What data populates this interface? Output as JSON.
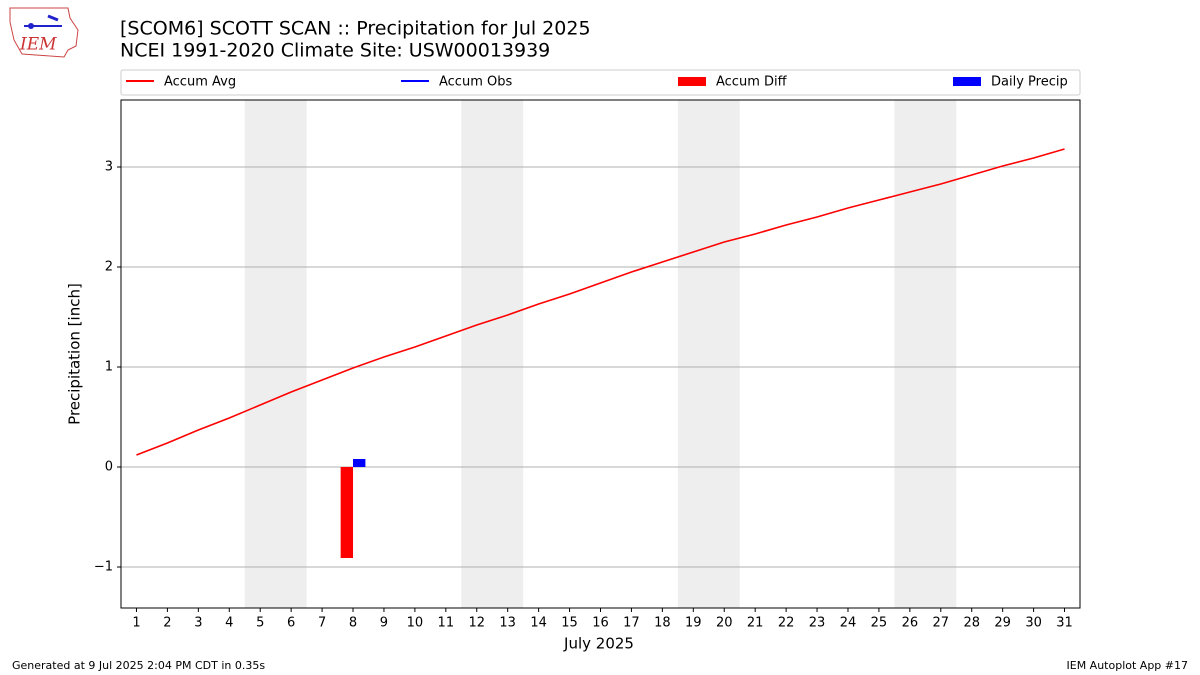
{
  "chart_data": {
    "type": "combo",
    "title": "[SCOM6] SCOTT SCAN :: Precipitation for Jul 2025",
    "subtitle": "NCEI 1991-2020 Climate Site: USW00013939",
    "x_label": "July 2025",
    "y_label": "Precipitation [inch]",
    "x": [
      1,
      2,
      3,
      4,
      5,
      6,
      7,
      8,
      9,
      10,
      11,
      12,
      13,
      14,
      15,
      16,
      17,
      18,
      19,
      20,
      21,
      22,
      23,
      24,
      25,
      26,
      27,
      28,
      29,
      30,
      31
    ],
    "xlim": [
      0.5,
      31.5
    ],
    "xticks": [
      1,
      2,
      3,
      4,
      5,
      6,
      7,
      8,
      9,
      10,
      11,
      12,
      13,
      14,
      15,
      16,
      17,
      18,
      19,
      20,
      21,
      22,
      23,
      24,
      25,
      26,
      27,
      28,
      29,
      30,
      31
    ],
    "ylim": [
      -1.41,
      3.67
    ],
    "yticks": [
      {
        "value": -1,
        "label": "−1"
      },
      0,
      1,
      2,
      3
    ],
    "grid": true,
    "shaded_spans": [
      [
        4.5,
        6.5
      ],
      [
        11.5,
        13.5
      ],
      [
        18.5,
        20.5
      ],
      [
        25.5,
        27.5
      ]
    ],
    "series": [
      {
        "name": "Accum Avg",
        "type": "line",
        "color": "#ff0000",
        "values": [
          0.12,
          0.24,
          0.37,
          0.49,
          0.62,
          0.75,
          0.87,
          0.99,
          1.1,
          1.2,
          1.31,
          1.42,
          1.52,
          1.63,
          1.73,
          1.84,
          1.95,
          2.05,
          2.15,
          2.25,
          2.33,
          2.42,
          2.5,
          2.59,
          2.67,
          2.75,
          2.83,
          2.92,
          3.01,
          3.09,
          3.18
        ]
      },
      {
        "name": "Accum Obs",
        "type": "line",
        "color": "#0000ff",
        "values": [
          null,
          null,
          null,
          null,
          null,
          null,
          null,
          null,
          null,
          null,
          null,
          null,
          null,
          null,
          null,
          null,
          null,
          null,
          null,
          null,
          null,
          null,
          null,
          null,
          null,
          null,
          null,
          null,
          null,
          null,
          null
        ]
      },
      {
        "name": "Accum Diff",
        "type": "bar",
        "color": "#ff0000",
        "values": [
          null,
          null,
          null,
          null,
          null,
          null,
          null,
          -0.91,
          null,
          null,
          null,
          null,
          null,
          null,
          null,
          null,
          null,
          null,
          null,
          null,
          null,
          null,
          null,
          null,
          null,
          null,
          null,
          null,
          null,
          null,
          null
        ]
      },
      {
        "name": "Daily Precip",
        "type": "bar",
        "color": "#0000ff",
        "values": [
          null,
          null,
          null,
          null,
          null,
          null,
          null,
          0.08,
          null,
          null,
          null,
          null,
          null,
          null,
          null,
          null,
          null,
          null,
          null,
          null,
          null,
          null,
          null,
          null,
          null,
          null,
          null,
          null,
          null,
          null,
          null
        ]
      }
    ],
    "footer_left": "Generated at 9 Jul 2025 2:04 PM CDT in 0.35s",
    "footer_right": "IEM Autoplot App #17"
  }
}
